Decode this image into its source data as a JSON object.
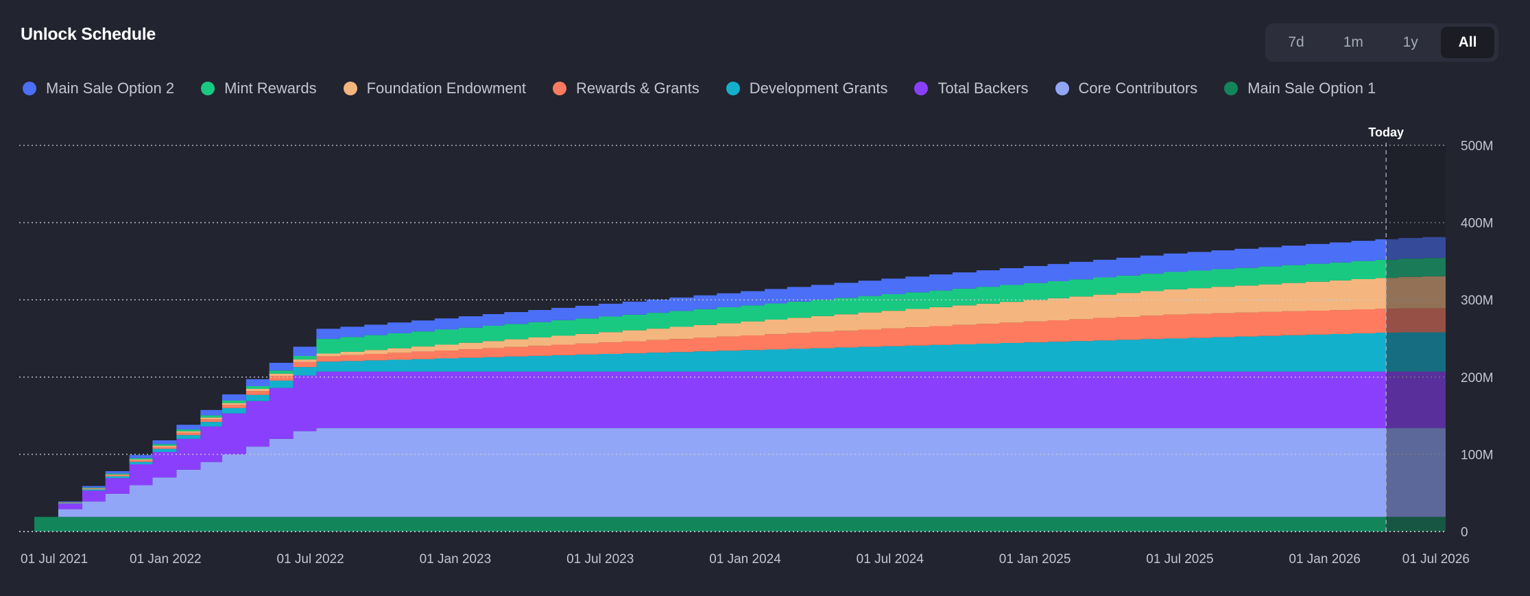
{
  "header": {
    "title": "Unlock Schedule"
  },
  "range": {
    "options": [
      "7d",
      "1m",
      "1y",
      "All"
    ],
    "selected": "All"
  },
  "chart_data": {
    "type": "area",
    "stacked": true,
    "step": true,
    "title": "Unlock Schedule",
    "x_start": "2021-07-01",
    "x_end": "2026-07-01",
    "x_tick_labels": [
      "01 Jul 2021",
      "01 Jan 2022",
      "01 Jul 2022",
      "01 Jan 2023",
      "01 Jul 2023",
      "01 Jan 2024",
      "01 Jul 2024",
      "01 Jan 2025",
      "01 Jul 2025",
      "01 Jan 2026",
      "01 Jul 2026"
    ],
    "y_unit": "M",
    "ylim": [
      0,
      500
    ],
    "y_ticks": [
      0,
      100,
      200,
      300,
      400,
      500
    ],
    "y_tick_labels": [
      "0",
      "100M",
      "200M",
      "300M",
      "400M",
      "500M"
    ],
    "grid": true,
    "legend_position": "top-left",
    "today_marker": {
      "label": "Today",
      "date": "2026-04-15"
    },
    "months": [
      "2021-07",
      "2021-08",
      "2021-09",
      "2021-10",
      "2021-11",
      "2021-12",
      "2022-01",
      "2022-02",
      "2022-03",
      "2022-04",
      "2022-05",
      "2022-06",
      "2022-07",
      "2022-08",
      "2022-09",
      "2022-10",
      "2022-11",
      "2022-12",
      "2023-01",
      "2023-02",
      "2023-03",
      "2023-04",
      "2023-05",
      "2023-06",
      "2023-07",
      "2023-08",
      "2023-09",
      "2023-10",
      "2023-11",
      "2023-12",
      "2024-01",
      "2024-02",
      "2024-03",
      "2024-04",
      "2024-05",
      "2024-06",
      "2024-07",
      "2024-08",
      "2024-09",
      "2024-10",
      "2024-11",
      "2024-12",
      "2025-01",
      "2025-02",
      "2025-03",
      "2025-04",
      "2025-05",
      "2025-06",
      "2025-07",
      "2025-08",
      "2025-09",
      "2025-10",
      "2025-11",
      "2025-12",
      "2026-01",
      "2026-02",
      "2026-03",
      "2026-04",
      "2026-05",
      "2026-06"
    ],
    "series": [
      {
        "name": "Main Sale Option 1",
        "color": "#13855a",
        "values": [
          19,
          19,
          19,
          19,
          19,
          19,
          19,
          19,
          19,
          19,
          19,
          19,
          19,
          19,
          19,
          19,
          19,
          19,
          19,
          19,
          19,
          19,
          19,
          19,
          19,
          19,
          19,
          19,
          19,
          19,
          19,
          19,
          19,
          19,
          19,
          19,
          19,
          19,
          19,
          19,
          19,
          19,
          19,
          19,
          19,
          19,
          19,
          19,
          19,
          19,
          19,
          19,
          19,
          19,
          19,
          19,
          19,
          19,
          19,
          19
        ]
      },
      {
        "name": "Core Contributors",
        "color": "#92a6f7",
        "values": [
          0,
          10,
          20,
          30,
          41,
          51,
          61,
          71,
          81,
          91,
          101,
          111,
          115,
          115,
          115,
          115,
          115,
          115,
          115,
          115,
          115,
          115,
          115,
          115,
          115,
          115,
          115,
          115,
          115,
          115,
          115,
          115,
          115,
          115,
          115,
          115,
          115,
          115,
          115,
          115,
          115,
          115,
          115,
          115,
          115,
          115,
          115,
          115,
          115,
          115,
          115,
          115,
          115,
          115,
          115,
          115,
          115,
          115,
          115,
          115
        ]
      },
      {
        "name": "Total Backers",
        "color": "#8a3ffc",
        "values": [
          0,
          7,
          14,
          20,
          27,
          33,
          40,
          46,
          53,
          59,
          66,
          72,
          73,
          73,
          73,
          73,
          73,
          73,
          73,
          73,
          73,
          73,
          73,
          73,
          73,
          73,
          73,
          73,
          73,
          73,
          73,
          73,
          73,
          73,
          73,
          73,
          73,
          73,
          73,
          73,
          73,
          73,
          73,
          73,
          73,
          73,
          73,
          73,
          73,
          73,
          73,
          73,
          73,
          73,
          73,
          73,
          73,
          73,
          73,
          73
        ]
      },
      {
        "name": "Development Grants",
        "color": "#13b0cc",
        "values": [
          0,
          0.8,
          1.6,
          2.5,
          3.3,
          4.1,
          5,
          6,
          7,
          8,
          9.5,
          11,
          13,
          13.8,
          14.7,
          15.5,
          16.3,
          17.2,
          18,
          18.8,
          19.7,
          20.5,
          21.3,
          22.2,
          23,
          23.8,
          24.7,
          25.5,
          26.3,
          27.2,
          28,
          28.8,
          29.7,
          30.5,
          31.3,
          32.2,
          33,
          33.8,
          34.7,
          35.5,
          36.3,
          37.2,
          38,
          38.8,
          39.7,
          40.5,
          41.3,
          42.2,
          43,
          43.8,
          44.7,
          45.5,
          46.3,
          47.2,
          48,
          48.8,
          49.7,
          50.5,
          51,
          51
        ]
      },
      {
        "name": "Rewards & Grants",
        "color": "#fe7b5f",
        "values": [
          0,
          0.5,
          1,
          1.5,
          2,
          2.5,
          3,
          3.5,
          4,
          5,
          6,
          6.5,
          7,
          7.7,
          8.3,
          9,
          9.7,
          10.3,
          11,
          11.7,
          12.3,
          13,
          13.7,
          14.3,
          15,
          15.7,
          16.3,
          17,
          17.7,
          18.3,
          19,
          19.7,
          20.3,
          21,
          21.7,
          22.3,
          23,
          23.7,
          24.3,
          25,
          25.7,
          26.3,
          27,
          27.7,
          28.3,
          29,
          29.7,
          30.3,
          31,
          31,
          31,
          31,
          31,
          31,
          31,
          31,
          31,
          31,
          31,
          31
        ]
      },
      {
        "name": "Foundation Endowment",
        "color": "#f4b67e",
        "values": [
          0,
          0.3,
          0.6,
          0.9,
          1.2,
          1.5,
          1.8,
          2.1,
          2.4,
          2.7,
          3,
          3.3,
          3.5,
          4.3,
          5.1,
          5.9,
          6.7,
          7.5,
          8.4,
          9.2,
          10,
          10.8,
          11.6,
          12.4,
          13.2,
          14,
          14.8,
          15.6,
          16.4,
          17.2,
          18.1,
          18.9,
          19.7,
          20.5,
          21.3,
          22.1,
          22.9,
          23.7,
          24.5,
          25.3,
          26.1,
          26.9,
          27.8,
          28.6,
          29.4,
          30.2,
          31,
          31.8,
          32.6,
          33.4,
          34.2,
          35,
          35.8,
          36.6,
          37.5,
          38.3,
          39.1,
          39.9,
          40.7,
          41.5
        ]
      },
      {
        "name": "Mint Rewards",
        "color": "#1ac981",
        "values": [
          0,
          0.4,
          0.8,
          1.2,
          1.6,
          2,
          2.4,
          2.8,
          3.2,
          3.6,
          4,
          4.5,
          19,
          19.1,
          19.2,
          19.3,
          19.4,
          19.5,
          19.6,
          19.7,
          19.8,
          19.9,
          20,
          20.1,
          20.2,
          20.3,
          20.4,
          20.5,
          20.6,
          20.7,
          20.8,
          20.9,
          21,
          21.1,
          21.2,
          21.3,
          21.4,
          21.5,
          21.6,
          21.7,
          21.8,
          21.9,
          22,
          22.1,
          22.2,
          22.3,
          22.4,
          22.5,
          22.6,
          22.7,
          22.8,
          22.9,
          23,
          23.1,
          23.2,
          23.3,
          23.4,
          23.5,
          23.6,
          23.7
        ]
      },
      {
        "name": "Main Sale Option 2",
        "color": "#4b6ff6",
        "values": [
          0,
          1,
          2,
          3,
          4,
          5,
          6,
          7,
          8,
          9,
          10,
          12,
          13,
          13.3,
          13.6,
          13.9,
          14.2,
          14.5,
          14.8,
          15.1,
          15.4,
          15.7,
          16,
          16.3,
          16.6,
          16.9,
          17.2,
          17.5,
          17.8,
          18.1,
          18.4,
          18.7,
          19,
          19.3,
          19.6,
          19.9,
          20.2,
          20.5,
          20.8,
          21.1,
          21.4,
          21.7,
          22,
          22.3,
          22.6,
          22.9,
          23.2,
          23.5,
          23.8,
          24.1,
          24.4,
          24.7,
          25,
          25.3,
          25.6,
          25.9,
          26.2,
          26.5,
          26.8,
          27.1
        ]
      }
    ]
  }
}
